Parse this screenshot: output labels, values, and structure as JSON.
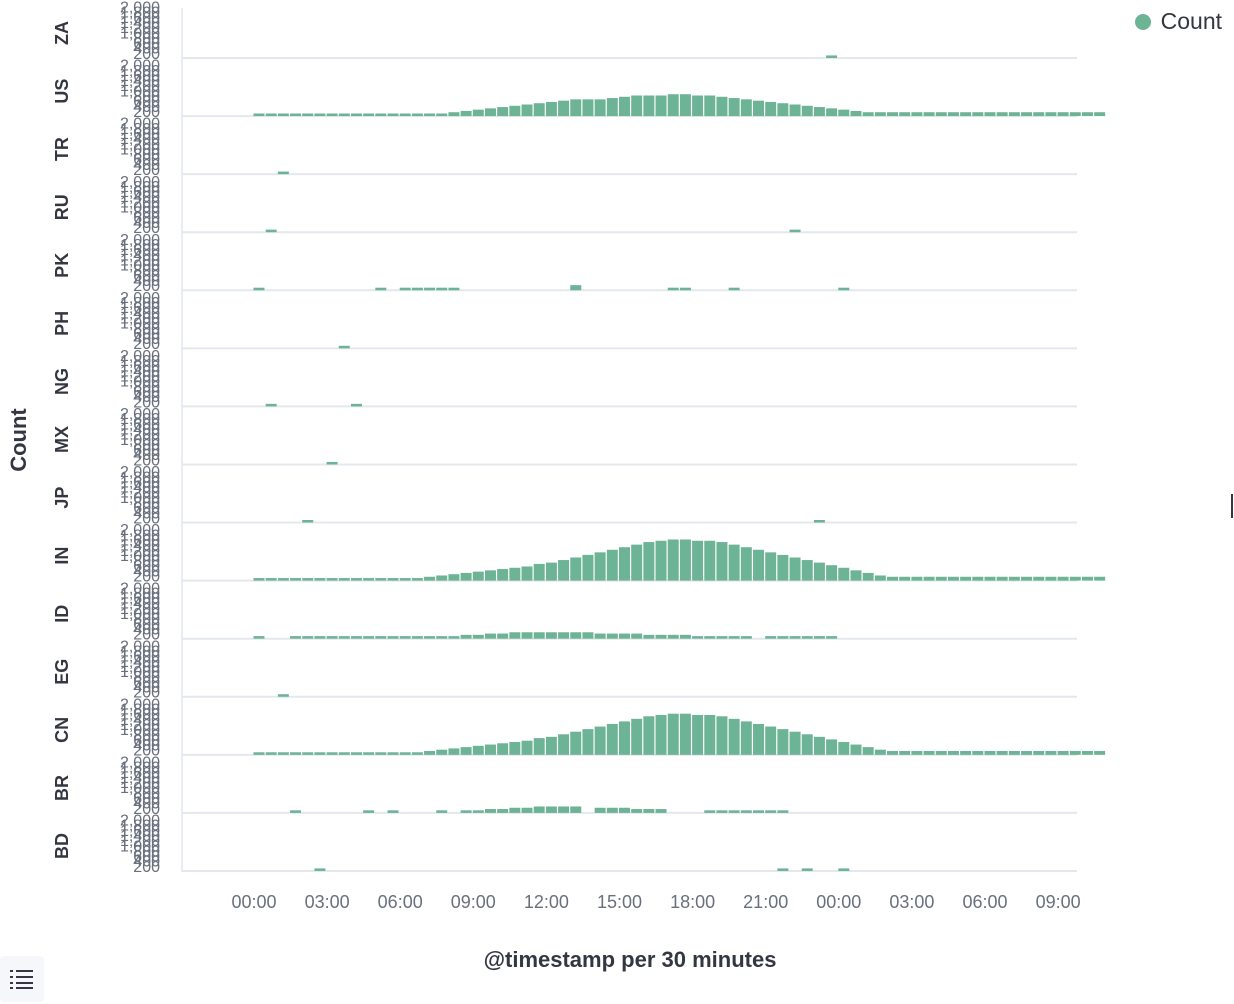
{
  "legend": {
    "label": "Count",
    "color": "#6db395"
  },
  "toolbar": {
    "list_icon": "list-icon"
  },
  "chart_data": {
    "type": "bar",
    "layout": "small-multiples",
    "split_by": "country",
    "xlabel": "@timestamp per 30 minutes",
    "ylabel": "Count",
    "x_ticks": [
      "00:00",
      "03:00",
      "06:00",
      "09:00",
      "12:00",
      "15:00",
      "18:00",
      "21:00",
      "00:00",
      "03:00",
      "06:00",
      "09:00"
    ],
    "x_tick_hours": [
      0,
      3,
      6,
      9,
      12,
      15,
      18,
      21,
      24,
      27,
      30,
      33
    ],
    "x_range_hours": [
      -3,
      34.5
    ],
    "bucket_hours": 0.5,
    "y_ticks": [
      200,
      400,
      600,
      800,
      1000,
      1200,
      1400,
      1600,
      1800,
      2000
    ],
    "y_tick_labels": [
      "200",
      "400",
      "600",
      "800",
      "1,000",
      "1,200",
      "1,400",
      "1,600",
      "1,800",
      "2,000"
    ],
    "ylim": [
      0,
      2100
    ],
    "color": "#6db395",
    "series": [
      {
        "name": "ZA",
        "points": [
          [
            23.5,
            100
          ]
        ]
      },
      {
        "name": "US",
        "start": 0,
        "values": [
          100,
          100,
          100,
          100,
          100,
          100,
          100,
          100,
          100,
          100,
          100,
          100,
          100,
          100,
          100,
          100,
          150,
          200,
          250,
          300,
          350,
          400,
          450,
          500,
          550,
          600,
          650,
          650,
          650,
          700,
          750,
          800,
          800,
          800,
          850,
          850,
          800,
          800,
          750,
          700,
          650,
          600,
          550,
          500,
          450,
          400,
          350,
          300,
          250,
          200,
          150,
          150,
          150,
          150,
          150,
          150,
          150,
          150,
          150,
          150,
          150,
          150,
          150,
          150,
          150,
          150,
          150,
          150,
          150,
          150
        ]
      },
      {
        "name": "TR",
        "points": [
          [
            1,
            100
          ]
        ]
      },
      {
        "name": "RU",
        "points": [
          [
            0.5,
            100
          ],
          [
            22,
            100
          ]
        ]
      },
      {
        "name": "PK",
        "points": [
          [
            0,
            100
          ],
          [
            5,
            100
          ],
          [
            6,
            100
          ],
          [
            6.5,
            100
          ],
          [
            7,
            100
          ],
          [
            7.5,
            100
          ],
          [
            8,
            100
          ],
          [
            13,
            200
          ],
          [
            17,
            100
          ],
          [
            17.5,
            100
          ],
          [
            19.5,
            100
          ],
          [
            24,
            100
          ]
        ]
      },
      {
        "name": "PH",
        "points": [
          [
            3.5,
            100
          ]
        ]
      },
      {
        "name": "NG",
        "points": [
          [
            0.5,
            100
          ],
          [
            4,
            100
          ]
        ]
      },
      {
        "name": "MX",
        "points": [
          [
            3,
            100
          ]
        ]
      },
      {
        "name": "JP",
        "points": [
          [
            2,
            100
          ],
          [
            23,
            100
          ]
        ]
      },
      {
        "name": "IN",
        "start": 0,
        "values": [
          100,
          100,
          100,
          100,
          100,
          100,
          100,
          100,
          100,
          100,
          100,
          100,
          100,
          100,
          150,
          200,
          250,
          300,
          350,
          400,
          450,
          500,
          550,
          650,
          700,
          800,
          900,
          1000,
          1100,
          1200,
          1300,
          1400,
          1500,
          1550,
          1600,
          1600,
          1550,
          1550,
          1500,
          1400,
          1300,
          1200,
          1100,
          1000,
          900,
          800,
          700,
          600,
          500,
          400,
          300,
          200,
          150,
          150,
          150,
          150,
          150,
          150,
          150,
          150,
          150,
          150,
          150,
          150,
          150,
          150,
          150,
          150,
          150,
          150
        ]
      },
      {
        "name": "ID",
        "points": [
          [
            0,
            100
          ],
          [
            1.5,
            100
          ],
          [
            2,
            100
          ],
          [
            2.5,
            100
          ],
          [
            3,
            100
          ],
          [
            3.5,
            100
          ],
          [
            4,
            100
          ],
          [
            4.5,
            100
          ],
          [
            5,
            100
          ],
          [
            5.5,
            100
          ],
          [
            6,
            100
          ],
          [
            6.5,
            100
          ],
          [
            7,
            100
          ],
          [
            7.5,
            100
          ],
          [
            8,
            100
          ],
          [
            8.5,
            150
          ],
          [
            9,
            150
          ],
          [
            9.5,
            200
          ],
          [
            10,
            200
          ],
          [
            10.5,
            250
          ],
          [
            11,
            250
          ],
          [
            11.5,
            250
          ],
          [
            12,
            250
          ],
          [
            12.5,
            250
          ],
          [
            13,
            250
          ],
          [
            13.5,
            250
          ],
          [
            14,
            200
          ],
          [
            14.5,
            200
          ],
          [
            15,
            200
          ],
          [
            15.5,
            200
          ],
          [
            16,
            150
          ],
          [
            16.5,
            150
          ],
          [
            17,
            150
          ],
          [
            17.5,
            150
          ],
          [
            18,
            100
          ],
          [
            18.5,
            100
          ],
          [
            19,
            100
          ],
          [
            19.5,
            100
          ],
          [
            20,
            100
          ],
          [
            21,
            100
          ],
          [
            21.5,
            100
          ],
          [
            22,
            100
          ],
          [
            22.5,
            100
          ],
          [
            23,
            100
          ],
          [
            23.5,
            100
          ]
        ]
      },
      {
        "name": "EG",
        "points": [
          [
            1,
            100
          ]
        ]
      },
      {
        "name": "CN",
        "start": 0,
        "values": [
          100,
          100,
          100,
          100,
          100,
          100,
          100,
          100,
          100,
          100,
          100,
          100,
          100,
          100,
          150,
          200,
          250,
          300,
          350,
          400,
          450,
          500,
          550,
          650,
          700,
          800,
          900,
          1000,
          1100,
          1200,
          1300,
          1400,
          1500,
          1550,
          1600,
          1600,
          1550,
          1550,
          1500,
          1400,
          1300,
          1200,
          1100,
          1000,
          900,
          800,
          700,
          600,
          500,
          400,
          300,
          200,
          150,
          150,
          150,
          150,
          150,
          150,
          150,
          150,
          150,
          150,
          150,
          150,
          150,
          150,
          150,
          150,
          150,
          150
        ]
      },
      {
        "name": "BR",
        "points": [
          [
            1.5,
            100
          ],
          [
            4.5,
            100
          ],
          [
            5.5,
            100
          ],
          [
            7.5,
            100
          ],
          [
            8.5,
            100
          ],
          [
            9,
            100
          ],
          [
            9.5,
            150
          ],
          [
            10,
            150
          ],
          [
            10.5,
            200
          ],
          [
            11,
            200
          ],
          [
            11.5,
            250
          ],
          [
            12,
            250
          ],
          [
            12.5,
            250
          ],
          [
            13,
            250
          ],
          [
            14,
            200
          ],
          [
            14.5,
            200
          ],
          [
            15,
            200
          ],
          [
            15.5,
            150
          ],
          [
            16,
            150
          ],
          [
            16.5,
            150
          ],
          [
            18.5,
            100
          ],
          [
            19,
            100
          ],
          [
            19.5,
            100
          ],
          [
            20,
            100
          ],
          [
            20.5,
            100
          ],
          [
            21,
            100
          ],
          [
            21.5,
            100
          ]
        ]
      },
      {
        "name": "BD",
        "points": [
          [
            2.5,
            100
          ],
          [
            21.5,
            100
          ],
          [
            22.5,
            100
          ],
          [
            24,
            100
          ]
        ]
      }
    ]
  }
}
